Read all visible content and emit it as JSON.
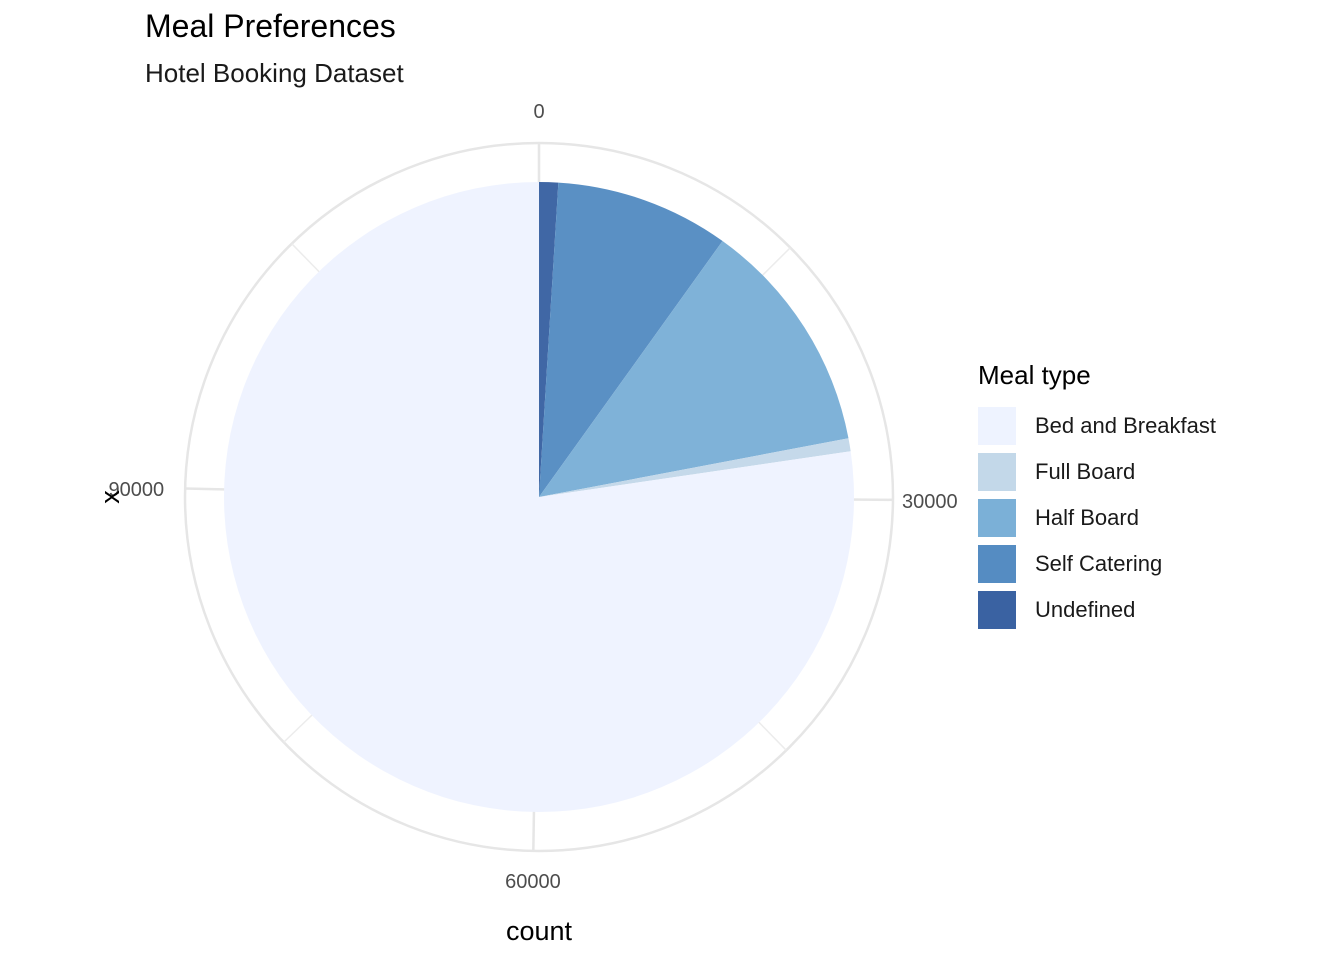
{
  "chart_data": {
    "type": "pie",
    "title": "Meal Preferences",
    "subtitle": "Hotel Booking Dataset",
    "xlabel": "count",
    "ylabel": "x",
    "legend_title": "Meal type",
    "legend_position": "right",
    "grid": true,
    "axis_ticks": [
      {
        "value": 0,
        "label": "0"
      },
      {
        "value": 30000,
        "label": "30000"
      },
      {
        "value": 60000,
        "label": "60000"
      },
      {
        "value": 90000,
        "label": "90000"
      }
    ],
    "slices": [
      {
        "name": "Bed and Breakfast",
        "value": 92310,
        "color": "#EEF3FF"
      },
      {
        "name": "Full Board",
        "value": 798,
        "color": "#C3D8E9"
      },
      {
        "name": "Half Board",
        "value": 14463,
        "color": "#7BB0D7"
      },
      {
        "name": "Self Catering",
        "value": 10650,
        "color": "#558CC2"
      },
      {
        "name": "Undefined",
        "value": 1169,
        "color": "#3A62A2"
      }
    ]
  }
}
